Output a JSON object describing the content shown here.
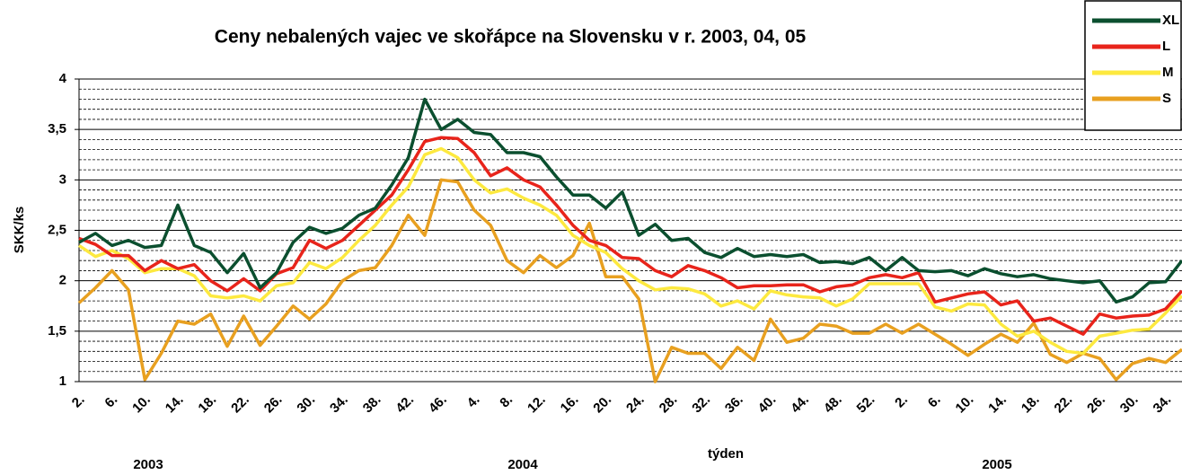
{
  "chart_data": {
    "type": "line",
    "title": "Ceny nebalených vajec ve skořápce na Slovensku v r. 2003, 04, 05",
    "y_label": "SKK/ks",
    "x_label": "týden",
    "year_labels": [
      "2003",
      "2004",
      "2005"
    ],
    "categories": [
      "2.",
      null,
      "6.",
      null,
      "10.",
      null,
      "14.",
      null,
      "18.",
      null,
      "22.",
      null,
      "26.",
      null,
      "30.",
      null,
      "34.",
      null,
      "38.",
      null,
      "42.",
      null,
      "46.",
      null,
      "4.",
      null,
      "8.",
      null,
      "12.",
      null,
      "16.",
      null,
      "20.",
      null,
      "24.",
      null,
      "28.",
      null,
      "32.",
      null,
      "36.",
      null,
      "40.",
      null,
      "44.",
      null,
      "48.",
      null,
      "52.",
      null,
      "2.",
      null,
      "6.",
      null,
      "10.",
      null,
      "14.",
      null,
      "18.",
      null,
      "22.",
      null,
      "26.",
      null,
      "30.",
      null,
      "34.",
      null
    ],
    "ylim": [
      1,
      4
    ],
    "yticks": [
      1,
      {
        "value": 1.5,
        "label": "1,5"
      },
      2,
      {
        "value": 2.5,
        "label": "2,5"
      },
      3,
      {
        "value": 3.5,
        "label": "3,5"
      },
      4
    ],
    "yminor": [
      1.1,
      1.2,
      1.3,
      1.4,
      1.6,
      1.7,
      1.8,
      1.9,
      2.1,
      2.2,
      2.3,
      2.4,
      2.6,
      2.7,
      2.8,
      2.9,
      3.1,
      3.2,
      3.3,
      3.4,
      3.6,
      3.7,
      3.8,
      3.9
    ],
    "grid": true,
    "legend": "top-right",
    "series": [
      {
        "name": "XL",
        "color": "#0b4f2f",
        "values": [
          2.38,
          2.47,
          2.35,
          2.4,
          2.33,
          2.35,
          2.75,
          2.35,
          2.28,
          2.08,
          2.27,
          1.93,
          2.08,
          2.38,
          2.53,
          2.47,
          2.52,
          2.65,
          2.72,
          2.95,
          3.22,
          3.8,
          3.5,
          3.6,
          3.47,
          3.45,
          3.27,
          3.27,
          3.23,
          3.03,
          2.85,
          2.85,
          2.72,
          2.88,
          2.45,
          2.56,
          2.4,
          2.42,
          2.28,
          2.23,
          2.32,
          2.24,
          2.26,
          2.24,
          2.26,
          2.18,
          2.19,
          2.17,
          2.23,
          2.1,
          2.23,
          2.1,
          2.09,
          2.1,
          2.05,
          2.12,
          2.07,
          2.04,
          2.06,
          2.02,
          2.0,
          1.98,
          2.0,
          1.79,
          1.84,
          1.98,
          1.99,
          2.2
        ]
      },
      {
        "name": "L",
        "color": "#e8241b",
        "values": [
          2.42,
          2.36,
          2.25,
          2.25,
          2.1,
          2.2,
          2.12,
          2.16,
          2.0,
          1.9,
          2.02,
          1.9,
          2.07,
          2.13,
          2.4,
          2.32,
          2.4,
          2.55,
          2.7,
          2.85,
          3.1,
          3.38,
          3.42,
          3.41,
          3.27,
          3.04,
          3.12,
          3.0,
          2.93,
          2.75,
          2.55,
          2.4,
          2.35,
          2.23,
          2.22,
          2.1,
          2.04,
          2.15,
          2.1,
          2.03,
          1.93,
          1.95,
          1.95,
          1.96,
          1.96,
          1.89,
          1.94,
          1.96,
          2.03,
          2.06,
          2.03,
          2.08,
          1.79,
          1.83,
          1.87,
          1.89,
          1.76,
          1.8,
          1.6,
          1.63,
          1.55,
          1.47,
          1.67,
          1.63,
          1.65,
          1.66,
          1.72,
          1.9
        ]
      },
      {
        "name": "M",
        "color": "#fde93f",
        "values": [
          2.35,
          2.24,
          2.3,
          2.22,
          2.08,
          2.12,
          2.12,
          2.05,
          1.85,
          1.83,
          1.85,
          1.8,
          1.95,
          1.98,
          2.18,
          2.12,
          2.23,
          2.4,
          2.55,
          2.75,
          2.93,
          3.25,
          3.31,
          3.22,
          3.0,
          2.87,
          2.91,
          2.82,
          2.75,
          2.65,
          2.45,
          2.35,
          2.28,
          2.12,
          2.0,
          1.91,
          1.93,
          1.92,
          1.87,
          1.75,
          1.8,
          1.72,
          1.9,
          1.86,
          1.84,
          1.83,
          1.75,
          1.82,
          1.97,
          1.97,
          1.97,
          1.97,
          1.74,
          1.7,
          1.77,
          1.76,
          1.57,
          1.45,
          1.5,
          1.39,
          1.3,
          1.28,
          1.45,
          1.48,
          1.51,
          1.52,
          1.68,
          1.85
        ]
      },
      {
        "name": "S",
        "color": "#e8a020",
        "values": [
          1.78,
          1.93,
          2.1,
          1.91,
          1.02,
          1.28,
          1.6,
          1.57,
          1.67,
          1.35,
          1.65,
          1.36,
          1.55,
          1.75,
          1.62,
          1.77,
          2.0,
          2.1,
          2.13,
          2.35,
          2.65,
          2.45,
          3.0,
          2.98,
          2.7,
          2.55,
          2.2,
          2.08,
          2.25,
          2.13,
          2.25,
          2.57,
          2.04,
          2.04,
          1.82,
          1.0,
          1.34,
          1.28,
          1.28,
          1.13,
          1.34,
          1.21,
          1.62,
          1.39,
          1.43,
          1.57,
          1.55,
          1.48,
          1.48,
          1.57,
          1.48,
          1.57,
          1.47,
          1.37,
          1.26,
          1.37,
          1.47,
          1.39,
          1.58,
          1.27,
          1.19,
          1.28,
          1.23,
          1.02,
          1.18,
          1.23,
          1.19,
          1.32
        ]
      }
    ]
  }
}
